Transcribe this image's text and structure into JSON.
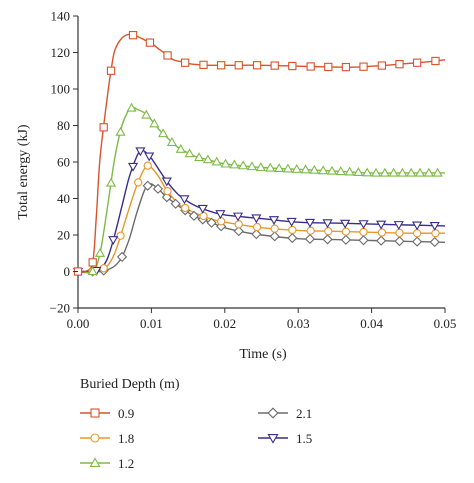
{
  "chart_data": {
    "type": "line",
    "title": "",
    "xlabel": "Time (s)",
    "ylabel": "Total energy (kJ)",
    "xlim": [
      0,
      0.05
    ],
    "ylim": [
      -20,
      140
    ],
    "x_ticks": [
      "0.00",
      "0.01",
      "0.02",
      "0.03",
      "0.04",
      "0.05"
    ],
    "y_ticks": [
      "−20",
      "0",
      "20",
      "40",
      "60",
      "80",
      "100",
      "120",
      "140"
    ],
    "grid": false,
    "legend_title": "Buried Depth (m)",
    "legend_position": "bottom",
    "series": [
      {
        "name": "0.9",
        "color": "#d9532b",
        "marker": "square",
        "points": [
          [
            0,
            0
          ],
          [
            0.001,
            0
          ],
          [
            0.002,
            5
          ],
          [
            0.0025,
            30
          ],
          [
            0.003,
            62
          ],
          [
            0.004,
            96
          ],
          [
            0.0045,
            110
          ],
          [
            0.005,
            121
          ],
          [
            0.006,
            128
          ],
          [
            0.007,
            130
          ],
          [
            0.008,
            129
          ],
          [
            0.009,
            127
          ],
          [
            0.01,
            125
          ],
          [
            0.011,
            122
          ],
          [
            0.012,
            119
          ],
          [
            0.013,
            116
          ],
          [
            0.014,
            115
          ],
          [
            0.015,
            114
          ],
          [
            0.016,
            113.5
          ],
          [
            0.018,
            113
          ],
          [
            0.02,
            113
          ],
          [
            0.025,
            113
          ],
          [
            0.03,
            112.5
          ],
          [
            0.035,
            112
          ],
          [
            0.038,
            112
          ],
          [
            0.04,
            112.5
          ],
          [
            0.042,
            113
          ],
          [
            0.045,
            114
          ],
          [
            0.048,
            115
          ],
          [
            0.05,
            116
          ]
        ],
        "markers_x": [
          0,
          0.002,
          0.0035,
          0.0045,
          0.0075,
          0.0098,
          0.0122,
          0.0146,
          0.0171,
          0.0195,
          0.0219,
          0.0244,
          0.0268,
          0.0292,
          0.0317,
          0.0341,
          0.0365,
          0.0389,
          0.0414,
          0.0438,
          0.0462,
          0.0487
        ]
      },
      {
        "name": "1.8",
        "color": "#e8962e",
        "marker": "circle",
        "points": [
          [
            0,
            0
          ],
          [
            0.002,
            0
          ],
          [
            0.003,
            0.5
          ],
          [
            0.004,
            3
          ],
          [
            0.005,
            10
          ],
          [
            0.006,
            22
          ],
          [
            0.007,
            35
          ],
          [
            0.008,
            47
          ],
          [
            0.009,
            56
          ],
          [
            0.0095,
            58
          ],
          [
            0.01,
            57
          ],
          [
            0.011,
            52
          ],
          [
            0.012,
            45
          ],
          [
            0.013,
            40
          ],
          [
            0.014,
            36
          ],
          [
            0.016,
            32
          ],
          [
            0.018,
            29
          ],
          [
            0.02,
            27
          ],
          [
            0.025,
            24
          ],
          [
            0.03,
            22.5
          ],
          [
            0.035,
            22
          ],
          [
            0.04,
            21.5
          ],
          [
            0.045,
            21
          ],
          [
            0.05,
            21
          ]
        ],
        "markers_x": [
          0,
          0.002,
          0.0035,
          0.0058,
          0.0082,
          0.0095,
          0.0122,
          0.0146,
          0.0171,
          0.0195,
          0.0219,
          0.0244,
          0.0268,
          0.0292,
          0.0317,
          0.0341,
          0.0365,
          0.0389,
          0.0414,
          0.0438,
          0.0462,
          0.0487
        ]
      },
      {
        "name": "1.2",
        "color": "#7dbb47",
        "marker": "triangle-up",
        "points": [
          [
            0,
            0
          ],
          [
            0.002,
            0
          ],
          [
            0.003,
            10
          ],
          [
            0.004,
            35
          ],
          [
            0.005,
            62
          ],
          [
            0.006,
            80
          ],
          [
            0.007,
            89
          ],
          [
            0.0075,
            90
          ],
          [
            0.008,
            89
          ],
          [
            0.009,
            87
          ],
          [
            0.01,
            83
          ],
          [
            0.011,
            78
          ],
          [
            0.012,
            74
          ],
          [
            0.013,
            70
          ],
          [
            0.014,
            67
          ],
          [
            0.015,
            65
          ],
          [
            0.016,
            63
          ],
          [
            0.018,
            61
          ],
          [
            0.02,
            59
          ],
          [
            0.025,
            57
          ],
          [
            0.03,
            56
          ],
          [
            0.035,
            55
          ],
          [
            0.04,
            54
          ],
          [
            0.045,
            54
          ],
          [
            0.05,
            54
          ]
        ],
        "markers_x": [
          0.002,
          0.003,
          0.0045,
          0.0058,
          0.0073,
          0.0093,
          0.0104,
          0.0116,
          0.0128,
          0.014,
          0.0152,
          0.0165,
          0.0177,
          0.0189,
          0.0201,
          0.0213,
          0.0225,
          0.0237,
          0.0249,
          0.0262,
          0.0274,
          0.0286,
          0.0298,
          0.031,
          0.0322,
          0.0334,
          0.0346,
          0.0358,
          0.037,
          0.0382,
          0.0394,
          0.0406,
          0.0418,
          0.043,
          0.0442,
          0.0454,
          0.0466,
          0.0478,
          0.049
        ]
      },
      {
        "name": "2.1",
        "color": "#6b6b6b",
        "marker": "diamond",
        "points": [
          [
            0,
            0
          ],
          [
            0.002,
            0
          ],
          [
            0.003,
            0
          ],
          [
            0.004,
            1
          ],
          [
            0.005,
            3
          ],
          [
            0.006,
            8
          ],
          [
            0.007,
            18
          ],
          [
            0.008,
            32
          ],
          [
            0.009,
            44
          ],
          [
            0.0095,
            47
          ],
          [
            0.01,
            48
          ],
          [
            0.011,
            45
          ],
          [
            0.012,
            41
          ],
          [
            0.013,
            38
          ],
          [
            0.014,
            35
          ],
          [
            0.016,
            30
          ],
          [
            0.018,
            27
          ],
          [
            0.02,
            24
          ],
          [
            0.022,
            22
          ],
          [
            0.025,
            20
          ],
          [
            0.03,
            18
          ],
          [
            0.035,
            17.5
          ],
          [
            0.04,
            17
          ],
          [
            0.045,
            16.5
          ],
          [
            0.05,
            16
          ]
        ],
        "markers_x": [
          0,
          0.002,
          0.0035,
          0.006,
          0.0095,
          0.0109,
          0.0121,
          0.0133,
          0.0146,
          0.0158,
          0.017,
          0.0182,
          0.0195,
          0.0219,
          0.0243,
          0.0268,
          0.0292,
          0.0316,
          0.034,
          0.0365,
          0.0389,
          0.0413,
          0.0438,
          0.0462,
          0.0486
        ]
      },
      {
        "name": "1.5",
        "color": "#3a2d8a",
        "marker": "triangle-down",
        "points": [
          [
            0,
            0
          ],
          [
            0.002,
            0
          ],
          [
            0.003,
            1
          ],
          [
            0.004,
            7
          ],
          [
            0.005,
            20
          ],
          [
            0.006,
            36
          ],
          [
            0.007,
            52
          ],
          [
            0.008,
            63
          ],
          [
            0.0085,
            66
          ],
          [
            0.009,
            66
          ],
          [
            0.01,
            62
          ],
          [
            0.011,
            56
          ],
          [
            0.012,
            50
          ],
          [
            0.013,
            45
          ],
          [
            0.014,
            41
          ],
          [
            0.016,
            36
          ],
          [
            0.018,
            33
          ],
          [
            0.02,
            31
          ],
          [
            0.025,
            29
          ],
          [
            0.03,
            27
          ],
          [
            0.035,
            26.5
          ],
          [
            0.04,
            26
          ],
          [
            0.045,
            25.5
          ],
          [
            0.05,
            25
          ]
        ],
        "markers_x": [
          0,
          0.0025,
          0.0048,
          0.0075,
          0.0085,
          0.0097,
          0.0121,
          0.0145,
          0.017,
          0.0194,
          0.0218,
          0.0243,
          0.0267,
          0.0291,
          0.0316,
          0.034,
          0.0364,
          0.0389,
          0.0413,
          0.0437,
          0.0462,
          0.0486
        ]
      }
    ]
  }
}
